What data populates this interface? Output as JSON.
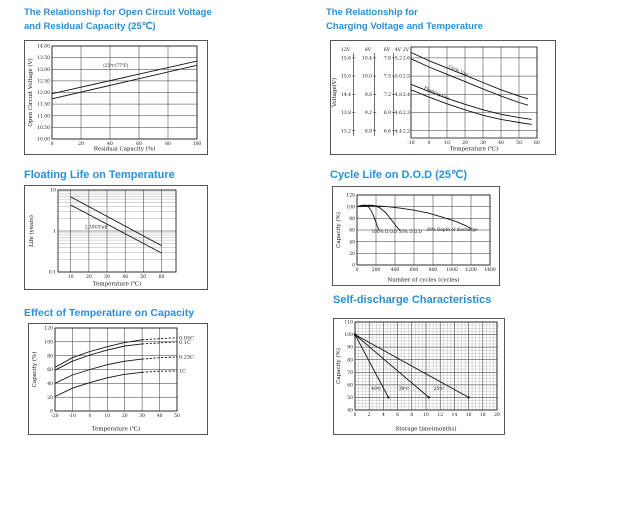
{
  "palette": {
    "title_blue": "#2a8fd6",
    "ink": "#111111",
    "grid": "#333333",
    "grid_minor": "#999999"
  },
  "chart_data": [
    {
      "id": "open-circuit-voltage",
      "type": "line",
      "title_lines": [
        "The Relationship for Open Circuit Voltage",
        "and Residual Capacity (25℃)"
      ],
      "xlabel": "Residual Capacity (%)",
      "ylabel": "Open Circuit Voltage (V)",
      "xlim": [
        0,
        100
      ],
      "ylim": [
        10,
        14
      ],
      "xticks": [
        [
          0,
          "0"
        ],
        [
          20,
          "20"
        ],
        [
          40,
          "40"
        ],
        [
          60,
          "60"
        ],
        [
          80,
          "80"
        ],
        [
          100,
          "100"
        ]
      ],
      "yticks": [
        [
          14,
          "14.00"
        ],
        [
          13.5,
          "13.50"
        ],
        [
          13,
          "13.00"
        ],
        [
          12.5,
          "12.50"
        ],
        [
          12,
          "12.00"
        ],
        [
          11.5,
          "11.50"
        ],
        [
          11,
          "11.00"
        ],
        [
          10.5,
          "10.50"
        ],
        [
          10,
          "10.00"
        ]
      ],
      "series": [
        {
          "name": "upper-line",
          "points": [
            [
              0,
              11.95
            ],
            [
              100,
              13.35
            ]
          ]
        },
        {
          "name": "lower-line",
          "points": [
            [
              0,
              11.73
            ],
            [
              100,
              13.17
            ]
          ]
        }
      ],
      "annotations": [
        {
          "x": 44,
          "y": 13.1,
          "text": "(25℃/77°F)"
        }
      ]
    },
    {
      "id": "charging-voltage-temperature",
      "type": "line",
      "title_lines": [
        "The Relationship for",
        "Charging Voltage and Temperature"
      ],
      "xlabel": "Temperature (℃)",
      "ylabel": "Voltage(V)",
      "xlim": [
        -10,
        60
      ],
      "ylim": [
        2.16,
        2.66
      ],
      "xticks": [
        [
          -10,
          "-10"
        ],
        [
          0,
          "0"
        ],
        [
          10,
          "10"
        ],
        [
          20,
          "20"
        ],
        [
          30,
          "30"
        ],
        [
          40,
          "40"
        ],
        [
          50,
          "50"
        ],
        [
          60,
          "60"
        ]
      ],
      "ygrid": [
        2.2,
        2.3,
        2.4,
        2.5,
        2.6
      ],
      "scale_y": [
        2.6,
        2.5,
        2.4,
        2.3,
        2.2
      ],
      "scales": [
        {
          "unit": "12V",
          "values": [
            "15.6",
            "15.0",
            "14.4",
            "13.8",
            "13.2"
          ],
          "line": true
        },
        {
          "unit": "8V",
          "values": [
            "10.4",
            "10.0",
            "9.6",
            "9.2",
            "8.8"
          ],
          "line": true
        },
        {
          "unit": "6V",
          "values": [
            "7.8",
            "7.5",
            "7.2",
            "6.9",
            "6.6"
          ],
          "line": true
        },
        {
          "unit": "4V",
          "values": [
            "5.2",
            "5.0",
            "4.8",
            "4.6",
            "4.4"
          ],
          "line": false
        },
        {
          "unit": "2V",
          "values": [
            "2.6",
            "2.5",
            "2.4",
            "2.3",
            "2.2"
          ],
          "line": false
        }
      ],
      "series": [
        {
          "name": "cycle-use-upper",
          "points": [
            [
              -10,
              2.63
            ],
            [
              0,
              2.585
            ],
            [
              10,
              2.545
            ],
            [
              20,
              2.505
            ],
            [
              30,
              2.465
            ],
            [
              40,
              2.425
            ],
            [
              50,
              2.39
            ],
            [
              55,
              2.375
            ]
          ]
        },
        {
          "name": "cycle-use-lower",
          "points": [
            [
              -10,
              2.595
            ],
            [
              0,
              2.55
            ],
            [
              10,
              2.51
            ],
            [
              20,
              2.47
            ],
            [
              30,
              2.43
            ],
            [
              40,
              2.39
            ],
            [
              50,
              2.355
            ],
            [
              55,
              2.34
            ]
          ]
        },
        {
          "name": "floating-use-upper",
          "points": [
            [
              -10,
              2.455
            ],
            [
              0,
              2.415
            ],
            [
              10,
              2.378
            ],
            [
              20,
              2.345
            ],
            [
              30,
              2.315
            ],
            [
              40,
              2.29
            ],
            [
              50,
              2.272
            ],
            [
              57,
              2.262
            ]
          ]
        },
        {
          "name": "floating-use-lower",
          "points": [
            [
              -10,
              2.425
            ],
            [
              0,
              2.385
            ],
            [
              10,
              2.348
            ],
            [
              20,
              2.315
            ],
            [
              30,
              2.285
            ],
            [
              40,
              2.262
            ],
            [
              50,
              2.245
            ],
            [
              57,
              2.235
            ]
          ]
        }
      ],
      "annotations": [
        {
          "x": 16,
          "y": 2.525,
          "text": "Cycle Use",
          "rotate": 24
        },
        {
          "x": 4,
          "y": 2.4,
          "text": "Floating Use",
          "rotate": 24
        }
      ]
    },
    {
      "id": "floating-life",
      "type": "line",
      "title_lines": [
        "Floating Life on Temperature"
      ],
      "xlabel": "Temperature (℃)",
      "ylabel": "Life (years)",
      "xlim": [
        3,
        68
      ],
      "ylim": [
        0.1,
        10
      ],
      "ylog": true,
      "log_minors": true,
      "xticks": [
        [
          10,
          "10"
        ],
        [
          20,
          "20"
        ],
        [
          30,
          "30"
        ],
        [
          40,
          "40"
        ],
        [
          50,
          "50"
        ],
        [
          60,
          "60"
        ]
      ],
      "yticks": [
        [
          10,
          "10"
        ],
        [
          1,
          "1"
        ],
        [
          0.1,
          "0.1"
        ]
      ],
      "ygrid": [
        0.1,
        1,
        10
      ],
      "series": [
        {
          "name": "band-upper",
          "points": [
            [
              10,
              6.8
            ],
            [
              60,
              0.44
            ]
          ]
        },
        {
          "name": "band-lower",
          "points": [
            [
              10,
              4.3
            ],
            [
              60,
              0.29
            ]
          ]
        }
      ],
      "annotations": [
        {
          "x": 24,
          "y": 1.15,
          "text": "2.30V/Cell"
        }
      ]
    },
    {
      "id": "cycle-life-dod",
      "type": "line",
      "title_lines": [
        "Cycle Life on D.O.D (25℃)"
      ],
      "xlabel": "Number of cycles (cycles)",
      "ylabel": "Capacity (%)",
      "xlim": [
        0,
        1400
      ],
      "ylim": [
        0,
        120
      ],
      "xticks": [
        [
          0,
          "0"
        ],
        [
          200,
          "200"
        ],
        [
          400,
          "400"
        ],
        [
          600,
          "600"
        ],
        [
          800,
          "800"
        ],
        [
          1000,
          "1000"
        ],
        [
          1200,
          "1200"
        ],
        [
          1400,
          "1400"
        ]
      ],
      "yticks": [
        [
          0,
          "0"
        ],
        [
          20,
          "20"
        ],
        [
          40,
          "40"
        ],
        [
          60,
          "60"
        ],
        [
          80,
          "80"
        ],
        [
          100,
          "100"
        ],
        [
          120,
          "120"
        ]
      ],
      "series": [
        {
          "name": "dod-100",
          "points": [
            [
              0,
              100
            ],
            [
              30,
              101.5
            ],
            [
              60,
              102.5
            ],
            [
              90,
              102.5
            ],
            [
              120,
              100
            ],
            [
              150,
              93
            ],
            [
              180,
              82
            ],
            [
              210,
              68
            ],
            [
              230,
              60
            ]
          ]
        },
        {
          "name": "dod-50",
          "points": [
            [
              0,
              100
            ],
            [
              60,
              101.5
            ],
            [
              120,
              102.5
            ],
            [
              180,
              102
            ],
            [
              240,
              98
            ],
            [
              300,
              90
            ],
            [
              360,
              78
            ],
            [
              420,
              65
            ],
            [
              455,
              59
            ]
          ]
        },
        {
          "name": "dod-30",
          "points": [
            [
              0,
              100
            ],
            [
              150,
              101.5
            ],
            [
              300,
              100.5
            ],
            [
              450,
              97.5
            ],
            [
              600,
              94
            ],
            [
              750,
              89
            ],
            [
              900,
              82
            ],
            [
              1050,
              74
            ],
            [
              1150,
              67
            ],
            [
              1205,
              62
            ]
          ]
        }
      ],
      "annotations": [
        {
          "x": 290,
          "y": 55,
          "text": "100% D.O.D"
        },
        {
          "x": 560,
          "y": 55,
          "text": "50% D.O.D"
        },
        {
          "x": 1000,
          "y": 58,
          "text": "30% Depth of discharge"
        }
      ]
    },
    {
      "id": "temperature-capacity",
      "type": "line",
      "title_lines": [
        "Effect of Temperature on Capacity"
      ],
      "xlabel": "Temperature (℃)",
      "ylabel": "Capacity (%)",
      "xlim": [
        -20,
        50
      ],
      "ylim": [
        0,
        120
      ],
      "xticks": [
        [
          -20,
          "-20"
        ],
        [
          -10,
          "-10"
        ],
        [
          0,
          "0"
        ],
        [
          10,
          "10"
        ],
        [
          20,
          "20"
        ],
        [
          30,
          "30"
        ],
        [
          40,
          "40"
        ],
        [
          50,
          "50"
        ]
      ],
      "yticks": [
        [
          0,
          "0"
        ],
        [
          20,
          "20"
        ],
        [
          40,
          "40"
        ],
        [
          60,
          "60"
        ],
        [
          80,
          "80"
        ],
        [
          100,
          "100"
        ],
        [
          120,
          "120"
        ]
      ],
      "series": [
        {
          "name": "rate-0.05C",
          "points": [
            [
              -20,
              63
            ],
            [
              -10,
              77
            ],
            [
              0,
              86
            ],
            [
              10,
              93
            ],
            [
              20,
              99
            ],
            [
              30,
              103
            ]
          ]
        },
        {
          "name": "rate-0.05C-tail",
          "points": [
            [
              30,
              103
            ],
            [
              40,
              104.5
            ],
            [
              50,
              106
            ]
          ],
          "dash": true
        },
        {
          "name": "rate-0.1C",
          "points": [
            [
              -20,
              59
            ],
            [
              -10,
              72
            ],
            [
              0,
              81
            ],
            [
              10,
              88
            ],
            [
              20,
              94
            ],
            [
              30,
              97
            ]
          ]
        },
        {
          "name": "rate-0.1C-tail",
          "points": [
            [
              30,
              97
            ],
            [
              40,
              98.5
            ],
            [
              50,
              100
            ]
          ],
          "dash": true
        },
        {
          "name": "rate-0.25C",
          "points": [
            [
              -20,
              40
            ],
            [
              -10,
              52
            ],
            [
              0,
              60
            ],
            [
              10,
              67
            ],
            [
              20,
              72
            ],
            [
              30,
              75
            ]
          ]
        },
        {
          "name": "rate-0.25C-tail",
          "points": [
            [
              30,
              75
            ],
            [
              40,
              77
            ],
            [
              50,
              78
            ]
          ],
          "dash": true
        },
        {
          "name": "rate-1C",
          "points": [
            [
              -20,
              21
            ],
            [
              -10,
              33
            ],
            [
              0,
              41
            ],
            [
              10,
              48
            ],
            [
              20,
              53
            ],
            [
              30,
              56
            ]
          ]
        },
        {
          "name": "rate-1C-tail",
          "points": [
            [
              30,
              56
            ],
            [
              40,
              57.5
            ],
            [
              50,
              58
            ]
          ],
          "dash": true
        }
      ],
      "right_labels": [
        {
          "y": 106,
          "text": "0.05C"
        },
        {
          "y": 99,
          "text": "0.1C"
        },
        {
          "y": 78,
          "text": "0.25C"
        },
        {
          "y": 58,
          "text": "1C"
        }
      ]
    },
    {
      "id": "self-discharge",
      "type": "line",
      "title_lines": [
        "Self-discharge Characteristics"
      ],
      "xlabel": "Storage time(months)",
      "ylabel": "Capacity (%)",
      "xlim": [
        0,
        20
      ],
      "ylim": [
        40,
        110
      ],
      "xminor_step": 0.5,
      "yminor_step": 2.5,
      "xticks": [
        [
          0,
          "0"
        ],
        [
          2,
          "2"
        ],
        [
          4,
          "4"
        ],
        [
          6,
          "6"
        ],
        [
          8,
          "8"
        ],
        [
          10,
          "10"
        ],
        [
          12,
          "12"
        ],
        [
          14,
          "14"
        ],
        [
          16,
          "16"
        ],
        [
          18,
          "18"
        ],
        [
          20,
          "20"
        ]
      ],
      "yticks": [
        [
          40,
          "40"
        ],
        [
          50,
          "50"
        ],
        [
          60,
          "60"
        ],
        [
          70,
          "70"
        ],
        [
          80,
          "80"
        ],
        [
          90,
          "90"
        ],
        [
          100,
          "100"
        ],
        [
          110,
          "110"
        ]
      ],
      "series": [
        {
          "name": "storage-40C",
          "points": [
            [
              0,
              100
            ],
            [
              4.7,
              50
            ]
          ],
          "end_dots": true
        },
        {
          "name": "storage-30C",
          "points": [
            [
              0,
              100
            ],
            [
              10.4,
              50
            ]
          ],
          "end_dots": true
        },
        {
          "name": "storage-25C",
          "points": [
            [
              0,
              100
            ],
            [
              16,
              50
            ]
          ],
          "end_dots": true
        }
      ],
      "annotations": [
        {
          "x": 3,
          "y": 56,
          "text": "40℃"
        },
        {
          "x": 6.9,
          "y": 56,
          "text": "30℃"
        },
        {
          "x": 11.8,
          "y": 56,
          "text": "25℃"
        }
      ]
    }
  ]
}
